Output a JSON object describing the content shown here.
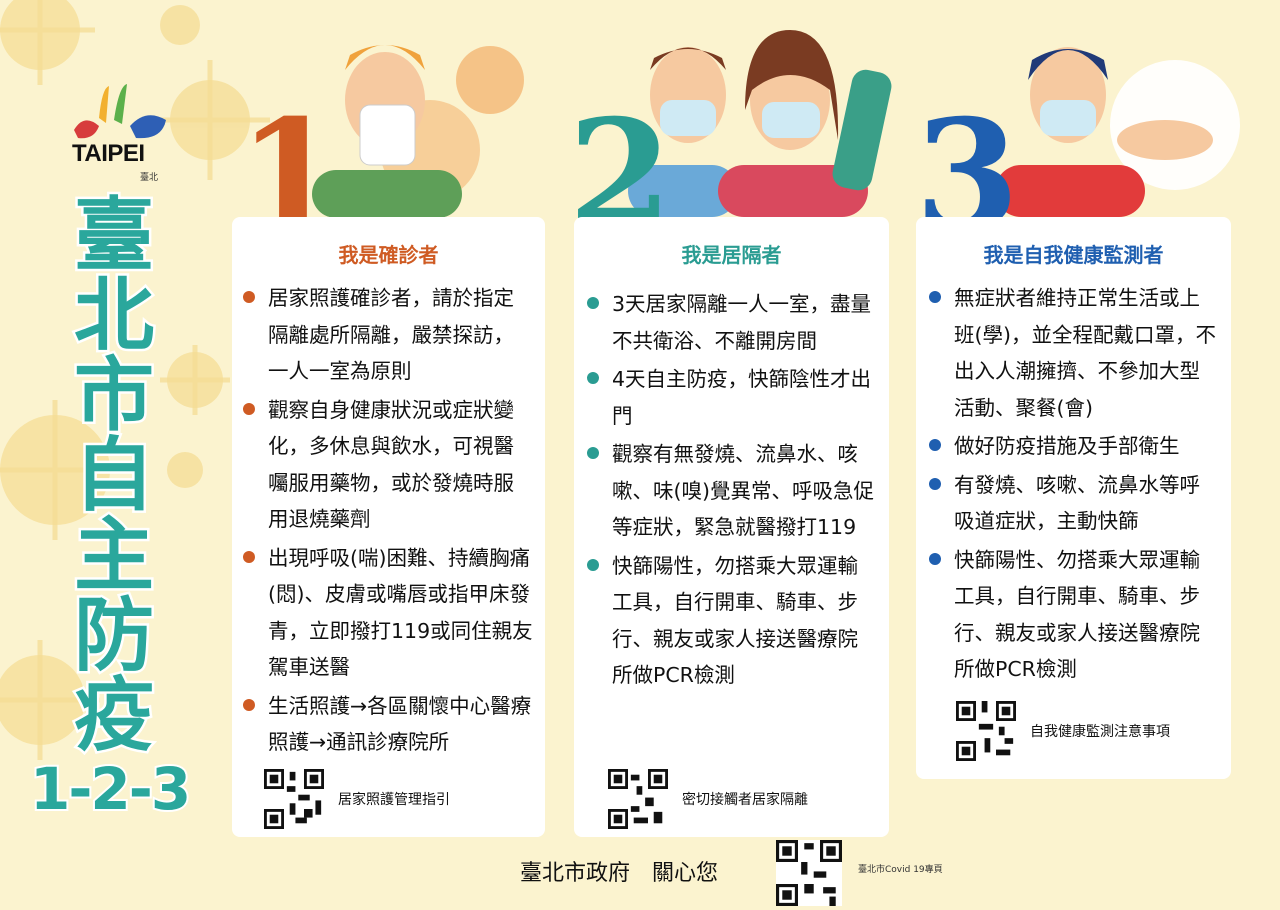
{
  "logo": {
    "text": "TAIPEI",
    "sub": "臺北"
  },
  "title": {
    "chars": [
      "臺",
      "北",
      "市",
      "自",
      "主",
      "防",
      "疫"
    ],
    "number": "1-2-3"
  },
  "colors": {
    "title": "#2aa79c",
    "card1": "#cf5b23",
    "card2": "#2a9c92",
    "card3": "#1f5fb0",
    "background": "#fbf3cf"
  },
  "cards": [
    {
      "number": "1",
      "heading": "我是確診者",
      "items": [
        "居家照護確診者，請於指定隔離處所隔離，嚴禁探訪，一人一室為原則",
        "觀察自身健康狀況或症狀變化，多休息與飲水，可視醫囑服用藥物，或於發燒時服用退燒藥劑",
        "出現呼吸(喘)困難、持續胸痛(悶)、皮膚或嘴唇或指甲床發青，立即撥打119或同住親友駕車送醫",
        "生活照護→各區關懷中心醫療照護→通訊診療院所"
      ],
      "qr_label": "居家照護管理指引"
    },
    {
      "number": "2",
      "heading": "我是居隔者",
      "items": [
        "3天居家隔離一人一室，盡量不共衛浴、不離開房間",
        "4天自主防疫，快篩陰性才出門",
        "觀察有無發燒、流鼻水、咳嗽、味(嗅)覺異常、呼吸急促等症狀，緊急就醫撥打119",
        "快篩陽性，勿搭乘大眾運輸工具，自行開車、騎車、步行、親友或家人接送醫療院所做PCR檢測"
      ],
      "qr_label": "密切接觸者居家隔離"
    },
    {
      "number": "3",
      "heading": "我是自我健康監測者",
      "items": [
        "無症狀者維持正常生活或上班(學)，並全程配戴口罩，不出入人潮擁擠、不參加大型活動、聚餐(會)",
        "做好防疫措施及手部衛生",
        "有發燒、咳嗽、流鼻水等呼吸道症狀，主動快篩",
        "快篩陽性、勿搭乘大眾運輸工具，自行開車、騎車、步行、親友或家人接送醫療院所做PCR檢測"
      ],
      "qr_label": "自我健康監測注意事項"
    }
  ],
  "footer": {
    "text": "臺北市政府　關心您",
    "small": "臺北市Covid 19專頁"
  }
}
